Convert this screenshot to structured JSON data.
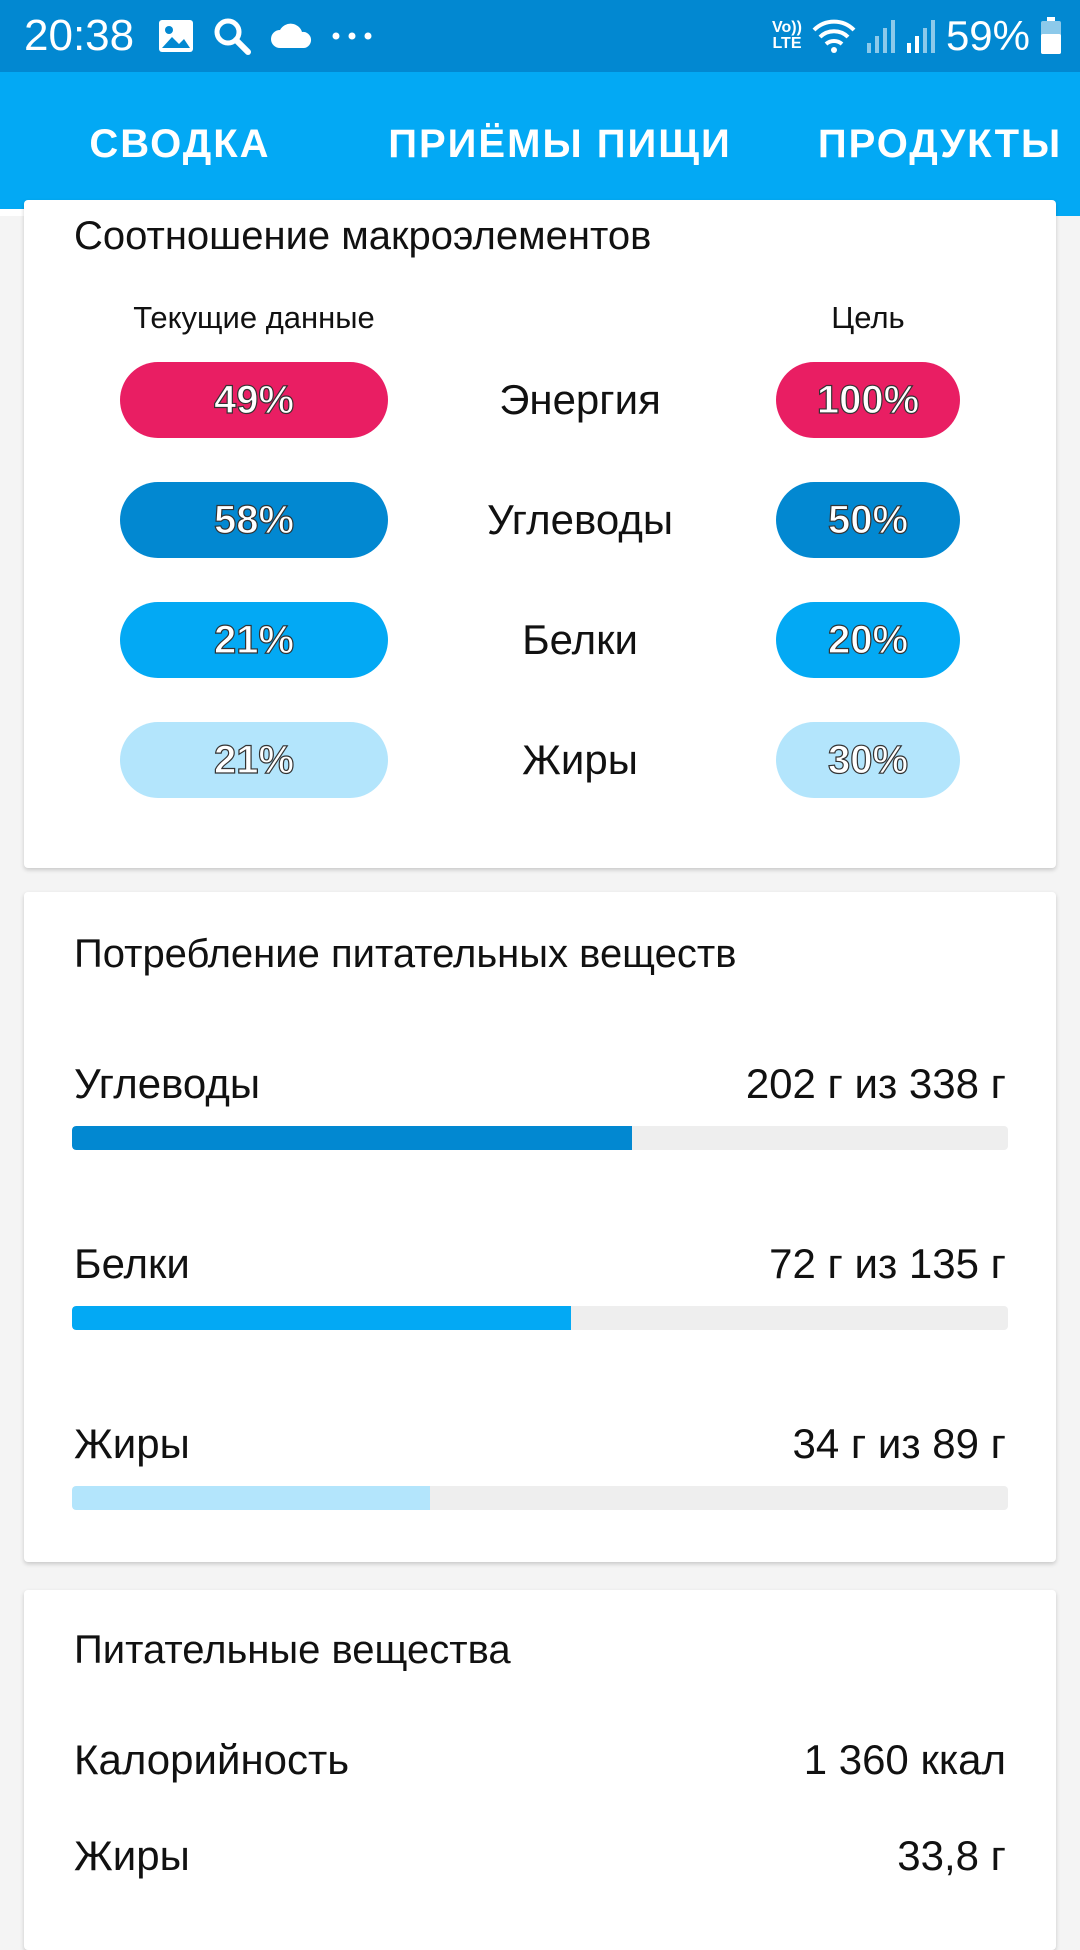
{
  "status_bar": {
    "time": "20:38",
    "battery_text": "59%",
    "network": "LTE",
    "volte": "Vo))",
    "icons_left": [
      "image-icon",
      "search-icon",
      "cloud-icon",
      "more-icon"
    ],
    "icons_right": [
      "volte-icon",
      "wifi-icon",
      "signal-icon",
      "signal-icon",
      "battery-icon"
    ]
  },
  "tabs": [
    {
      "label": "СВОДКА",
      "active": true
    },
    {
      "label": "ПРИЁМЫ ПИЩИ",
      "active": false
    },
    {
      "label": "ПРОДУКТЫ",
      "active": false
    }
  ],
  "macro_card": {
    "title": "Соотношение макроэлементов",
    "current_header": "Текущие данные",
    "goal_header": "Цель",
    "rows": [
      {
        "label": "Энергия",
        "current": "49%",
        "goal": "100%",
        "color": "#e91e63"
      },
      {
        "label": "Углеводы",
        "current": "58%",
        "goal": "50%",
        "color": "#0288d1"
      },
      {
        "label": "Белки",
        "current": "21%",
        "goal": "20%",
        "color": "#03a9f4"
      },
      {
        "label": "Жиры",
        "current": "21%",
        "goal": "30%",
        "color": "#b3e5fc"
      }
    ]
  },
  "intake_card": {
    "title": "Потребление питательных веществ",
    "items": [
      {
        "label": "Углеводы",
        "value": "202 г из 338 г",
        "progress": 0.598,
        "color": "#0288d1"
      },
      {
        "label": "Белки",
        "value": "72 г из 135 г",
        "progress": 0.533,
        "color": "#03a9f4"
      },
      {
        "label": "Жиры",
        "value": "34 г из 89 г",
        "progress": 0.382,
        "color": "#b3e5fc"
      }
    ]
  },
  "nutrients_card": {
    "title": "Питательные вещества",
    "rows": [
      {
        "label": "Калорийность",
        "value": "1 360 ккал"
      },
      {
        "label": "Жиры",
        "value": "33,8 г"
      }
    ]
  },
  "colors": {
    "status_bar": "#0288d1",
    "tab_bar": "#03a9f4",
    "energy": "#e91e63",
    "track": "#eeeeee"
  }
}
